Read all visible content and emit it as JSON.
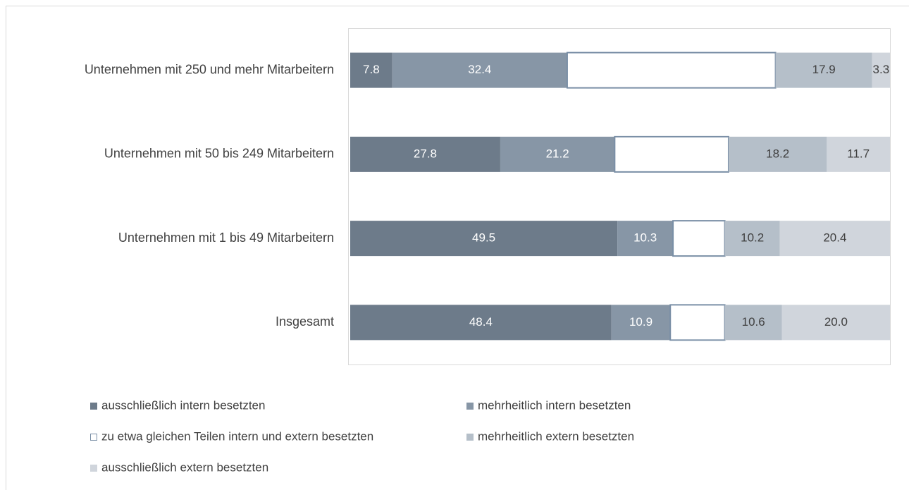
{
  "chart_data": {
    "type": "bar",
    "orientation": "horizontal",
    "stacked": true,
    "categories": [
      "Unternehmen mit 250 und mehr Mitarbeitern",
      "Unternehmen mit 50 bis 249 Mitarbeitern",
      "Unternehmen mit 1 bis 49 Mitarbeitern",
      "Insgesamt"
    ],
    "series": [
      {
        "name": "ausschließlich intern besetzten",
        "color": "#6d7b8a",
        "values": [
          7.8,
          27.8,
          49.5,
          48.4
        ],
        "value_labels": [
          "7.8",
          "27.8",
          "49.5",
          "48.4"
        ]
      },
      {
        "name": "mehrheitlich intern besetzten",
        "color": "#8796a6",
        "values": [
          32.4,
          21.2,
          10.3,
          10.9
        ],
        "value_labels": [
          "32.4",
          "21.2",
          "10.3",
          "10.9"
        ]
      },
      {
        "name": "zu etwa gleichen Teilen intern und extern besetzten",
        "color": "#ffffff",
        "values": [
          38.6,
          21.1,
          9.6,
          10.1
        ],
        "value_labels": [
          null,
          null,
          null,
          null
        ]
      },
      {
        "name": "mehrheitlich extern besetzten",
        "color": "#b5bfc9",
        "values": [
          17.9,
          18.2,
          10.2,
          10.6
        ],
        "value_labels": [
          "17.9",
          "18.2",
          "10.2",
          "10.6"
        ]
      },
      {
        "name": "ausschließlich extern besetzten",
        "color": "#d0d5dc",
        "values": [
          3.3,
          11.7,
          20.4,
          20.0
        ],
        "value_labels": [
          "3.3",
          "11.7",
          "20.4",
          "20.0"
        ]
      }
    ],
    "xlim": [
      0,
      100
    ],
    "legend": "bottom"
  }
}
